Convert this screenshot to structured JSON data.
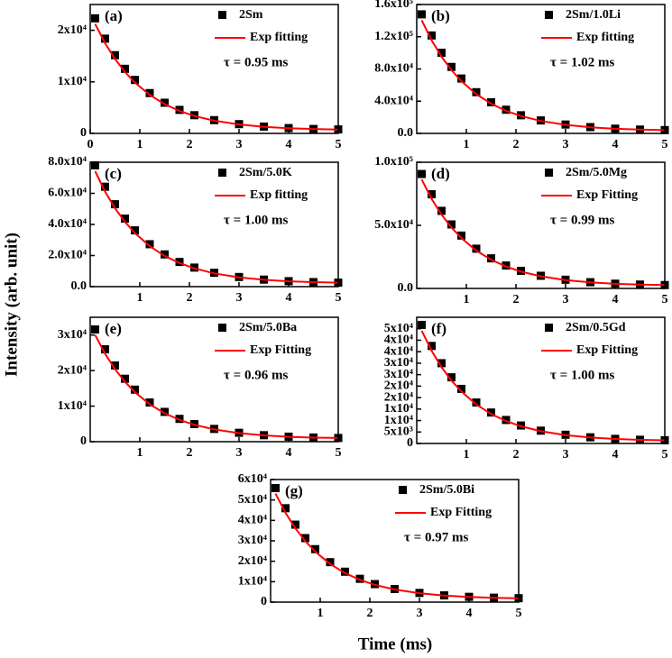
{
  "ylabel": "Intensity (arb. unit)",
  "xlabel": "Time (ms)",
  "chart_data": [
    {
      "type": "decay",
      "label": "(a)",
      "annotation": "τ = 0.95 ms",
      "xlim": [
        0,
        5
      ],
      "xticks": [
        0,
        1,
        2,
        3,
        4,
        5
      ],
      "ylim": [
        0,
        25000
      ],
      "yticks": [
        0,
        {
          "value": 10000,
          "label": "1x10⁴"
        },
        {
          "value": 20000,
          "label": "2x10⁴"
        }
      ],
      "x": [
        0.1,
        0.3,
        0.5,
        0.7,
        0.9,
        1.2,
        1.5,
        1.8,
        2.1,
        2.5,
        3,
        3.5,
        4,
        4.5,
        5
      ],
      "series": [
        {
          "name": "2Sm",
          "color": "#000000",
          "mode": "markers",
          "values": [
            22320,
            18380,
            15170,
            12530,
            10370,
            7820,
            5950,
            4560,
            3530,
            2570,
            1800,
            1320,
            1030,
            860,
            770
          ]
        },
        {
          "name": "Exp fitting",
          "color": "#ff0000",
          "mode": "lines",
          "values": [
            21230,
            17490,
            14440,
            11930,
            9880,
            7460,
            5680,
            4360,
            3380,
            2470,
            1740,
            1280,
            1010,
            850,
            760
          ]
        }
      ]
    },
    {
      "type": "decay",
      "label": "(b)",
      "annotation": "τ = 1.02 ms",
      "xlim": [
        0,
        5
      ],
      "xticks": [
        1,
        2,
        3,
        4,
        5
      ],
      "ylim": [
        0,
        160000
      ],
      "yticks": [
        {
          "value": 0,
          "label": "0.0"
        },
        {
          "value": 40000,
          "label": "4.0x10⁴"
        },
        {
          "value": 80000,
          "label": "8.0x10⁴"
        },
        {
          "value": 120000,
          "label": "1.2x10⁵"
        },
        {
          "value": 160000,
          "label": "1.6x10⁵"
        }
      ],
      "x": [
        0.1,
        0.3,
        0.5,
        0.7,
        0.9,
        1.2,
        1.5,
        1.8,
        2.1,
        2.5,
        3,
        3.5,
        4,
        4.5,
        5
      ],
      "series": [
        {
          "name": "2Sm/1.0Li",
          "color": "#000000",
          "mode": "markers",
          "values": [
            147800,
            121560,
            100120,
            82520,
            68120,
            51160,
            38680,
            29400,
            22520,
            16120,
            11000,
            7800,
            5880,
            4760,
            4120
          ]
        },
        {
          "name": "Exp fitting",
          "color": "#ff0000",
          "mode": "lines",
          "values": [
            140560,
            115630,
            95260,
            78540,
            64860,
            48750,
            36900,
            28080,
            21540,
            15460,
            10600,
            7560,
            5740,
            4670,
            4060
          ]
        }
      ]
    },
    {
      "type": "decay",
      "label": "(c)",
      "annotation": "τ = 1.00 ms",
      "xlim": [
        0,
        5
      ],
      "xticks": [
        1,
        2,
        3,
        4,
        5
      ],
      "ylim": [
        0,
        80000
      ],
      "yticks": [
        {
          "value": 0,
          "label": "0.0"
        },
        {
          "value": 20000,
          "label": "2.0x10⁴"
        },
        {
          "value": 40000,
          "label": "4.0x10⁴"
        },
        {
          "value": 60000,
          "label": "6.0x10⁴"
        },
        {
          "value": 80000,
          "label": "8.0x10⁴"
        }
      ],
      "x": [
        0.1,
        0.3,
        0.5,
        0.7,
        0.9,
        1.2,
        1.5,
        1.8,
        2.1,
        2.5,
        3,
        3.5,
        4,
        4.5,
        5
      ],
      "series": [
        {
          "name": "2Sm/5.0K",
          "color": "#000000",
          "mode": "markers",
          "values": [
            78020,
            64240,
            52990,
            43750,
            36190,
            27280,
            20730,
            15860,
            12250,
            8890,
            6200,
            4520,
            3510,
            2920,
            2590
          ]
        },
        {
          "name": "Exp fitting",
          "color": "#ff0000",
          "mode": "lines",
          "values": [
            74220,
            61130,
            50440,
            41660,
            34480,
            26020,
            19790,
            15170,
            11740,
            8550,
            5990,
            4390,
            3430,
            2870,
            2560
          ]
        }
      ]
    },
    {
      "type": "decay",
      "label": "(d)",
      "annotation": "τ = 0.99 ms",
      "xlim": [
        0,
        5
      ],
      "xticks": [
        1,
        2,
        3,
        4,
        5
      ],
      "ylim": [
        0,
        100000
      ],
      "yticks": [
        {
          "value": 0,
          "label": "0.0"
        },
        {
          "value": 50000,
          "label": "5.0x10⁴"
        },
        {
          "value": 100000,
          "label": "1.0x10⁵"
        }
      ],
      "x": [
        0.1,
        0.3,
        0.5,
        0.7,
        0.9,
        1.2,
        1.5,
        1.8,
        2.1,
        2.5,
        3,
        3.5,
        4,
        4.5,
        5
      ],
      "series": [
        {
          "name": "2Sm/5.0Mg",
          "color": "#000000",
          "mode": "markers",
          "values": [
            90690,
            74620,
            61490,
            50710,
            41890,
            31500,
            23850,
            18170,
            13960,
            10040,
            6900,
            4940,
            3760,
            3080,
            2690
          ]
        },
        {
          "name": "Exp Fitting",
          "color": "#ff0000",
          "mode": "lines",
          "values": [
            86260,
            70990,
            58520,
            48270,
            39900,
            30030,
            22760,
            17360,
            13360,
            9640,
            6660,
            4790,
            3670,
            3030,
            2660
          ]
        }
      ]
    },
    {
      "type": "decay",
      "label": "(e)",
      "annotation": "τ = 0.96 ms",
      "xlim": [
        0,
        5
      ],
      "xticks": [
        1,
        2,
        3,
        4,
        5
      ],
      "ylim": [
        0,
        35000
      ],
      "yticks": [
        0,
        {
          "value": 10000,
          "label": "1x10⁴"
        },
        {
          "value": 20000,
          "label": "2x10⁴"
        },
        {
          "value": 30000,
          "label": "3x10⁴"
        }
      ],
      "x": [
        0.1,
        0.3,
        0.5,
        0.7,
        0.9,
        1.2,
        1.5,
        1.8,
        2.1,
        2.5,
        3,
        3.5,
        4,
        4.5,
        5
      ],
      "series": [
        {
          "name": "2Sm/5.0Ba",
          "color": "#000000",
          "mode": "markers",
          "values": [
            31570,
            25990,
            21440,
            17700,
            14640,
            11030,
            8380,
            6410,
            4950,
            3590,
            2500,
            1820,
            1410,
            1170,
            1040
          ]
        },
        {
          "name": "Exp Fitting",
          "color": "#ff0000",
          "mode": "lines",
          "values": [
            30030,
            24730,
            20410,
            16850,
            13950,
            10520,
            8000,
            6130,
            4740,
            3450,
            2420,
            1770,
            1380,
            1150,
            1030
          ]
        }
      ]
    },
    {
      "type": "decay",
      "label": "(f)",
      "annotation": "τ = 1.00 ms",
      "xlim": [
        0,
        5
      ],
      "xticks": [
        1,
        2,
        3,
        4,
        5
      ],
      "ylim": [
        0,
        55000
      ],
      "yticks": [
        0,
        {
          "value": 5000,
          "label": "5x10³"
        },
        {
          "value": 10000,
          "label": "1x10⁴"
        },
        {
          "value": 15000,
          "label": "1x10⁴"
        },
        {
          "value": 20000,
          "label": "2x10⁴"
        },
        {
          "value": 25000,
          "label": "2x10⁴"
        },
        {
          "value": 30000,
          "label": "3x10⁴"
        },
        {
          "value": 35000,
          "label": "3x10⁴"
        },
        {
          "value": 40000,
          "label": "4x10⁴"
        },
        {
          "value": 45000,
          "label": "4x10⁴"
        },
        {
          "value": 50000,
          "label": "5x10⁴"
        }
      ],
      "x": [
        0.1,
        0.3,
        0.5,
        0.7,
        0.9,
        1.2,
        1.5,
        1.8,
        2.1,
        2.5,
        3,
        3.5,
        4,
        4.5,
        5
      ],
      "series": [
        {
          "name": "2Sm/0.5Gd",
          "color": "#000000",
          "mode": "markers",
          "values": [
            51680,
            42500,
            34990,
            28830,
            23790,
            17860,
            13490,
            10240,
            7830,
            5590,
            3800,
            2680,
            2010,
            1620,
            1390
          ]
        },
        {
          "name": "Exp Fitting",
          "color": "#ff0000",
          "mode": "lines",
          "values": [
            49150,
            40420,
            33290,
            27440,
            22650,
            17010,
            12860,
            9780,
            7490,
            5360,
            3660,
            2600,
            1960,
            1590,
            1370
          ]
        }
      ]
    },
    {
      "type": "decay",
      "label": "(g)",
      "annotation": "τ = 0.97 ms",
      "xlim": [
        0,
        5
      ],
      "xticks": [
        1,
        2,
        3,
        4,
        5
      ],
      "ylim": [
        0,
        60000
      ],
      "yticks": [
        0,
        {
          "value": 10000,
          "label": "1x10⁴"
        },
        {
          "value": 20000,
          "label": "2x10⁴"
        },
        {
          "value": 30000,
          "label": "3x10⁴"
        },
        {
          "value": 40000,
          "label": "4x10⁴"
        },
        {
          "value": 50000,
          "label": "5x10⁴"
        },
        {
          "value": 60000,
          "label": "6x10⁴"
        }
      ],
      "x": [
        0.1,
        0.3,
        0.5,
        0.7,
        0.9,
        1.2,
        1.5,
        1.8,
        2.1,
        2.5,
        3,
        3.5,
        4,
        4.5,
        5
      ],
      "series": [
        {
          "name": "2Sm/5.0Bi",
          "color": "#000000",
          "mode": "markers",
          "values": [
            55800,
            45960,
            37920,
            31320,
            25920,
            19560,
            14880,
            11400,
            8820,
            6420,
            4500,
            3300,
            2580,
            2160,
            1920
          ]
        },
        {
          "name": "Exp Fitting",
          "color": "#ff0000",
          "mode": "lines",
          "values": [
            53090,
            43740,
            36100,
            29830,
            24700,
            18660,
            14210,
            10910,
            8450,
            6170,
            4350,
            3210,
            2530,
            2130,
            1900
          ]
        }
      ]
    }
  ]
}
